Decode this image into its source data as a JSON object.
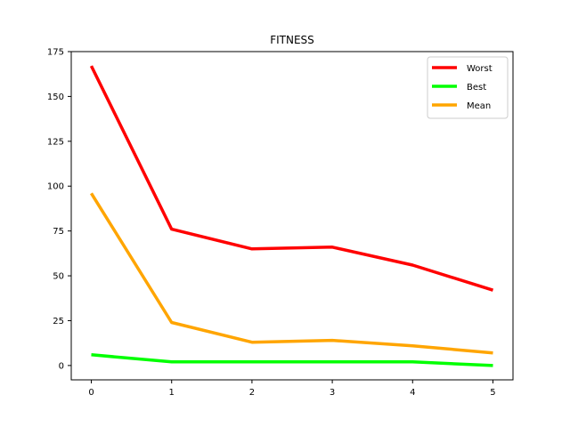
{
  "chart_data": {
    "type": "line",
    "title": "FITNESS",
    "xlabel": "",
    "ylabel": "",
    "x": [
      0,
      1,
      2,
      3,
      4,
      5
    ],
    "xlim": [
      -0.25,
      5.25
    ],
    "ylim": [
      -8,
      175
    ],
    "xticks": [
      0,
      1,
      2,
      3,
      4,
      5
    ],
    "yticks": [
      0,
      25,
      50,
      75,
      100,
      125,
      150,
      175
    ],
    "grid": false,
    "legend_position": "top-right",
    "series": [
      {
        "name": "Worst",
        "color": "#ff0000",
        "values": [
          167,
          76,
          65,
          66,
          56,
          42
        ]
      },
      {
        "name": "Best",
        "color": "#00ff00",
        "values": [
          6,
          2,
          2,
          2,
          2,
          0
        ]
      },
      {
        "name": "Mean",
        "color": "#ffa500",
        "values": [
          96,
          24,
          13,
          14,
          11,
          7
        ]
      }
    ]
  }
}
